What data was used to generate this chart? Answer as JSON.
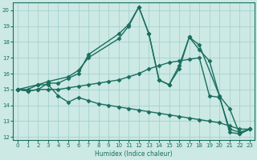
{
  "xlabel": "Humidex (Indice chaleur)",
  "xlim": [
    -0.5,
    23.5
  ],
  "ylim": [
    11.8,
    20.5
  ],
  "yticks": [
    12,
    13,
    14,
    15,
    16,
    17,
    18,
    19,
    20
  ],
  "xticks": [
    0,
    1,
    2,
    3,
    4,
    5,
    6,
    7,
    8,
    9,
    10,
    11,
    12,
    13,
    14,
    15,
    16,
    17,
    18,
    19,
    20,
    21,
    22,
    23
  ],
  "bg_color": "#cce9e4",
  "line_color": "#1a6e5e",
  "line_width": 1.0,
  "marker": "D",
  "marker_size": 2.5,
  "lines": [
    {
      "x": [
        0,
        1,
        2,
        3,
        4,
        5,
        6,
        7,
        8,
        9,
        10,
        11,
        12,
        13,
        14,
        15,
        16,
        17,
        18,
        19,
        20,
        21,
        22,
        23
      ],
      "y": [
        15.0,
        15.0,
        15.3,
        15.3,
        14.6,
        14.2,
        14.5,
        14.3,
        14.1,
        14.0,
        13.9,
        13.8,
        13.7,
        13.6,
        13.5,
        13.4,
        13.3,
        13.2,
        13.1,
        13.0,
        12.9,
        12.7,
        12.5,
        12.5
      ]
    },
    {
      "x": [
        0,
        2,
        3,
        5,
        6,
        7,
        10,
        11,
        12,
        13,
        14,
        15,
        16,
        17,
        18,
        20,
        21,
        22,
        23
      ],
      "y": [
        15.0,
        15.3,
        15.5,
        15.8,
        16.2,
        17.0,
        18.2,
        19.0,
        20.2,
        18.5,
        15.6,
        15.3,
        16.5,
        18.3,
        17.8,
        14.6,
        13.8,
        12.2,
        12.5
      ]
    },
    {
      "x": [
        0,
        1,
        2,
        3,
        4,
        5,
        6,
        7,
        10,
        11,
        12,
        13,
        14,
        15,
        16,
        17,
        18,
        19,
        20,
        21,
        22,
        23
      ],
      "y": [
        15.0,
        14.9,
        15.0,
        15.4,
        15.4,
        15.7,
        16.0,
        17.2,
        18.5,
        19.1,
        20.2,
        18.5,
        15.6,
        15.3,
        16.3,
        18.3,
        17.5,
        16.8,
        14.6,
        12.3,
        12.2,
        12.5
      ]
    },
    {
      "x": [
        0,
        1,
        2,
        3,
        4,
        5,
        6,
        7,
        8,
        9,
        10,
        11,
        12,
        13,
        14,
        15,
        16,
        17,
        18,
        19,
        20,
        21,
        22,
        23
      ],
      "y": [
        15.0,
        14.9,
        15.0,
        15.0,
        15.0,
        15.1,
        15.2,
        15.3,
        15.4,
        15.5,
        15.6,
        15.8,
        16.0,
        16.3,
        16.5,
        16.7,
        16.8,
        16.9,
        17.0,
        14.6,
        14.5,
        12.5,
        12.3,
        12.5
      ]
    }
  ]
}
